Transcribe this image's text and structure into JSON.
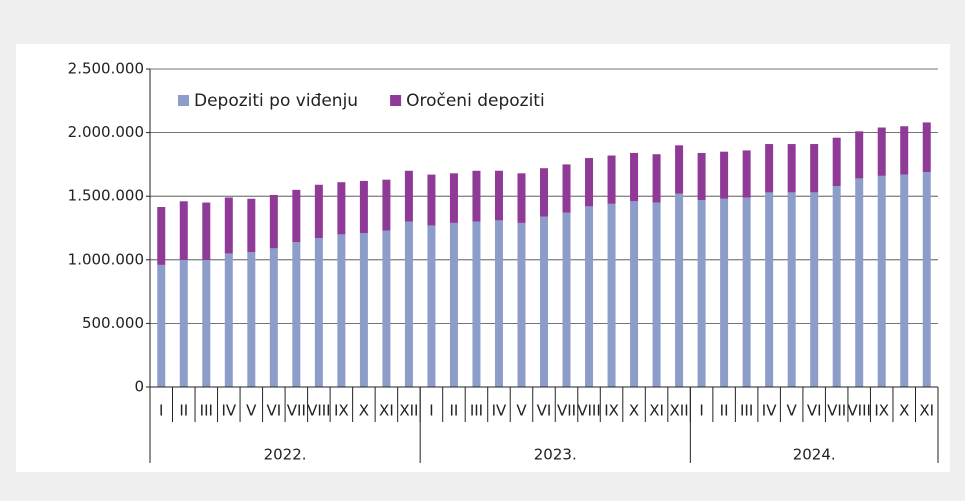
{
  "chart_data": {
    "type": "stacked_bar",
    "categories": [
      "I",
      "II",
      "III",
      "IV",
      "V",
      "VI",
      "VII",
      "VIII",
      "IX",
      "X",
      "XI",
      "XII",
      "I",
      "II",
      "III",
      "IV",
      "V",
      "VI",
      "VII",
      "VIII",
      "IX",
      "X",
      "XI",
      "XII",
      "I",
      "II",
      "III",
      "IV",
      "V",
      "VI",
      "VII",
      "VIII",
      "IX",
      "X",
      "XI"
    ],
    "groups": [
      "2022.",
      "2023.",
      "2024."
    ],
    "series": [
      {
        "name": "Depoziti po viđenju",
        "color": "#8d9dc9",
        "values": [
          960000,
          1000000,
          1000000,
          1050000,
          1060000,
          1090000,
          1140000,
          1170000,
          1200000,
          1210000,
          1230000,
          1300000,
          1270000,
          1290000,
          1300000,
          1310000,
          1290000,
          1340000,
          1370000,
          1420000,
          1440000,
          1460000,
          1450000,
          1520000,
          1470000,
          1480000,
          1490000,
          1530000,
          1530000,
          1530000,
          1580000,
          1640000,
          1660000,
          1670000,
          1690000
        ]
      },
      {
        "name": "Oročeni depoziti",
        "color": "#8e3a96",
        "values": [
          455000,
          460000,
          450000,
          440000,
          420000,
          420000,
          410000,
          420000,
          410000,
          410000,
          400000,
          400000,
          400000,
          390000,
          400000,
          390000,
          390000,
          380000,
          380000,
          380000,
          380000,
          380000,
          380000,
          380000,
          370000,
          370000,
          370000,
          380000,
          380000,
          380000,
          380000,
          370000,
          380000,
          380000,
          390000
        ]
      }
    ],
    "ylim": [
      0,
      2500000
    ],
    "yticks": [
      0,
      {
        "value": 500000,
        "label": "500.000"
      },
      {
        "value": 1000000,
        "label": "1.000.000"
      },
      {
        "value": 1500000,
        "label": "1.500.000"
      },
      {
        "value": 2000000,
        "label": "2.000.000"
      },
      {
        "value": 2500000,
        "label": "2.500.000"
      }
    ],
    "grid": true,
    "legend": "top-left"
  }
}
